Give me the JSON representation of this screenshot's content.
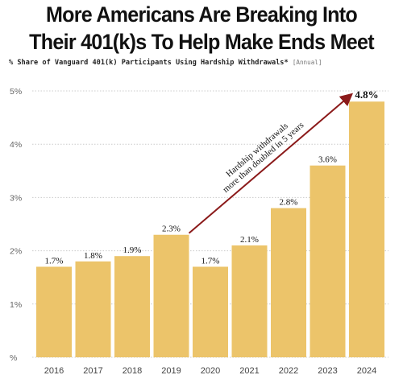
{
  "chart_data": {
    "type": "bar",
    "title_lines": [
      "More Americans Are Breaking Into",
      "Their 401(k)s To Help Make Ends Meet"
    ],
    "subtitle": "% Share of Vanguard 401(k) Participants Using Hardship Withdrawals*",
    "subtitle_note": "[Annual]",
    "categories": [
      "2016",
      "2017",
      "2018",
      "2019",
      "2020",
      "2021",
      "2022",
      "2023",
      "2024"
    ],
    "values": [
      1.7,
      1.8,
      1.9,
      2.3,
      1.7,
      2.1,
      2.8,
      3.6,
      4.8
    ],
    "data_labels": [
      "1.7%",
      "1.8%",
      "1.9%",
      "2.3%",
      "1.7%",
      "2.1%",
      "2.8%",
      "3.6%",
      "4.8%"
    ],
    "yticks": [
      0,
      1,
      2,
      3,
      4,
      5
    ],
    "ytick_labels": [
      "%",
      "1%",
      "2%",
      "3%",
      "4%",
      "5%"
    ],
    "ylim": [
      0,
      5
    ],
    "grid": true,
    "annotation": {
      "lines": [
        "Hardship withdrawals",
        "more than doubled in 5 years"
      ],
      "from_category": "2019",
      "to_category": "2024"
    },
    "colors": {
      "bar": "#ecc46a",
      "arrow": "#8b1a1a",
      "grid": "#cccccc",
      "text": "#222222"
    }
  }
}
